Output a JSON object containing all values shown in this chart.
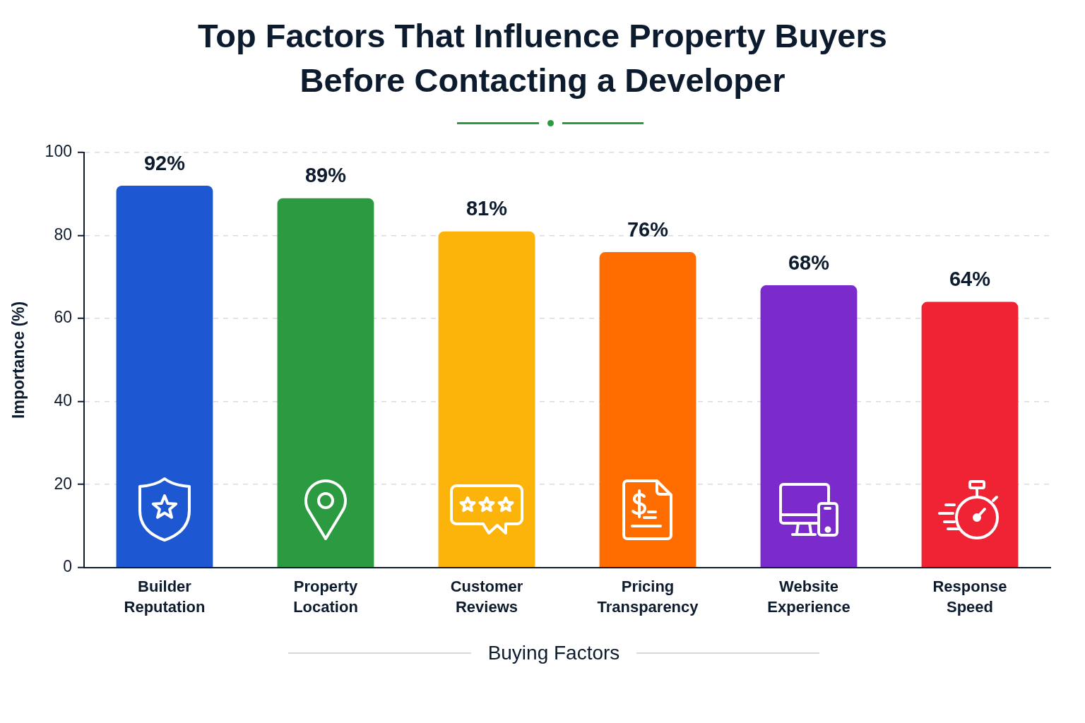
{
  "chart_data": {
    "type": "bar",
    "title": "Top Factors That Influence Property Buyers Before Contacting a Developer",
    "xlabel": "Buying Factors",
    "ylabel": "Importance (%)",
    "categories": [
      "Builder Reputation",
      "Property Location",
      "Customer Reviews",
      "Pricing Transparency",
      "Website Experience",
      "Response Speed"
    ],
    "values": [
      92,
      89,
      81,
      76,
      68,
      64
    ],
    "colors": [
      "#1d57d2",
      "#2b9a40",
      "#fdb40a",
      "#ff6d00",
      "#7b2bcc",
      "#ef2333"
    ],
    "value_labels": [
      "92%",
      "89%",
      "81%",
      "76%",
      "68%",
      "64%"
    ],
    "ylim": [
      0,
      100
    ],
    "yticks": [
      0,
      20,
      40,
      60,
      80,
      100
    ],
    "grid": "y"
  }
}
